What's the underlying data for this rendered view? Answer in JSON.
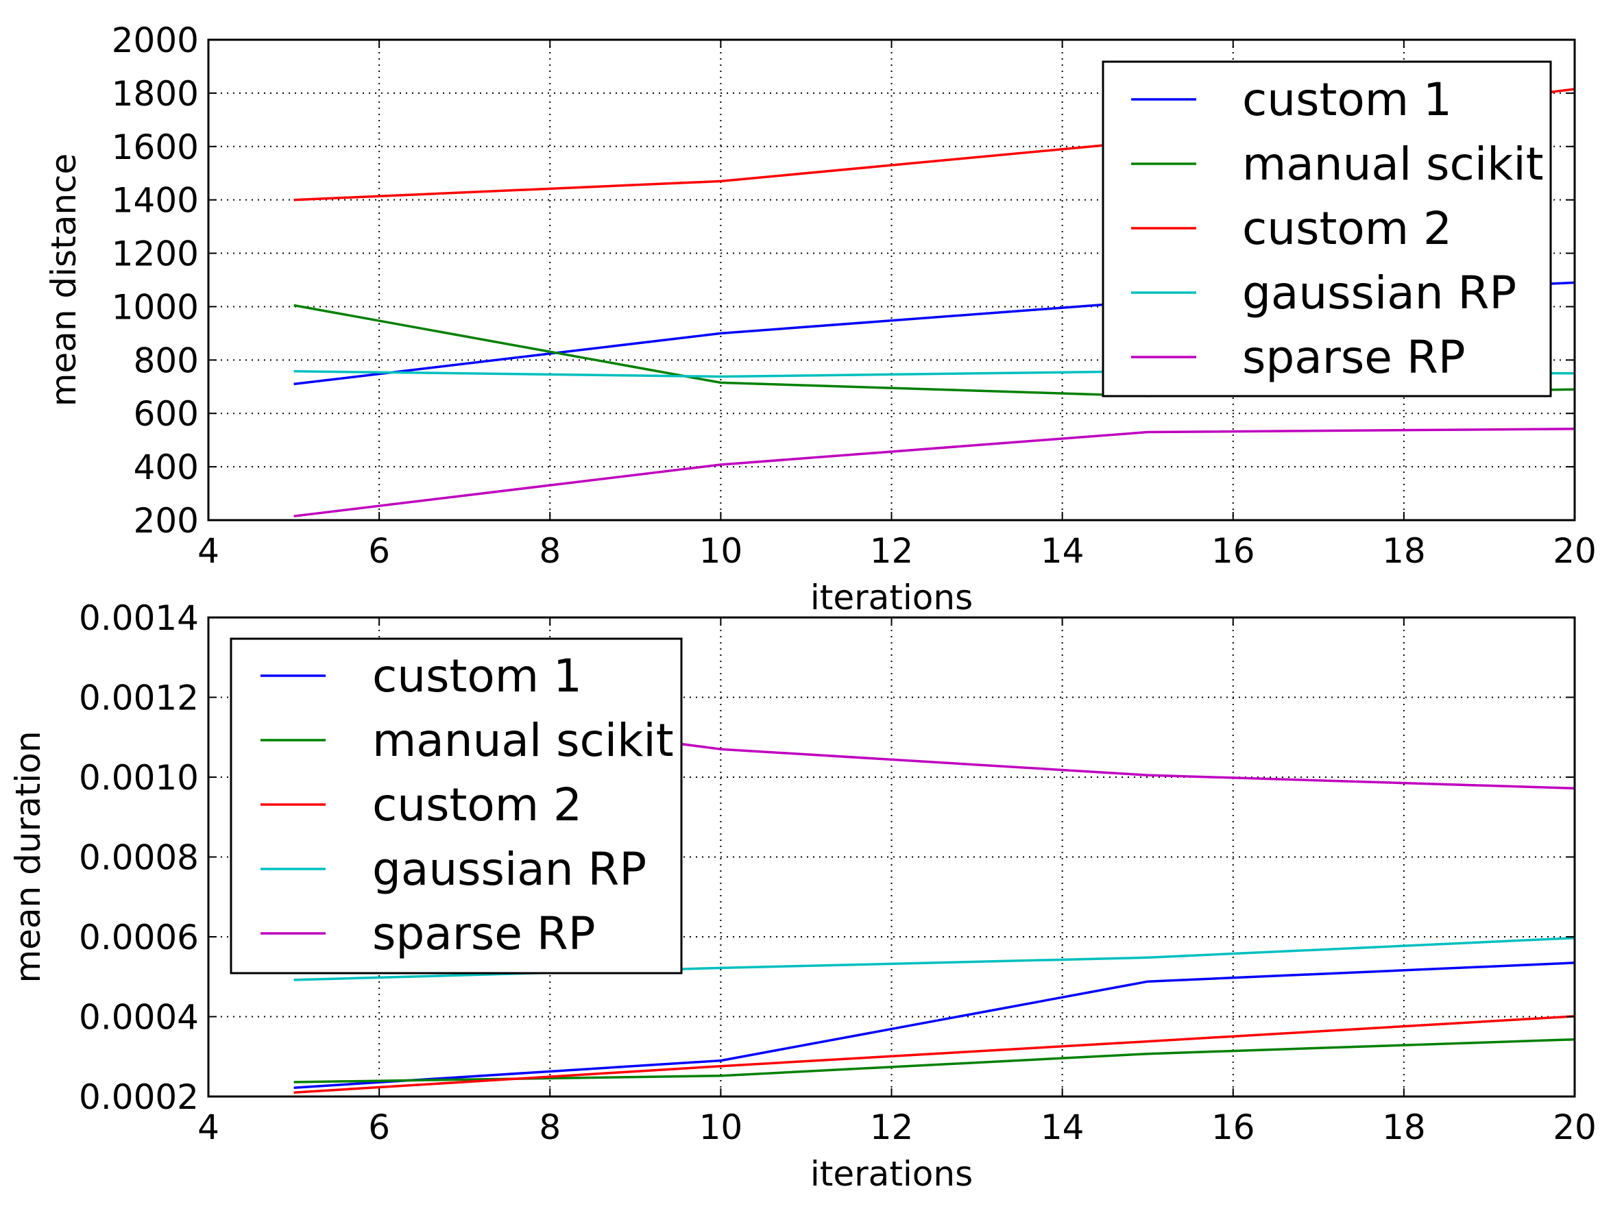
{
  "chart_data": [
    {
      "type": "line",
      "title": "",
      "xlabel": "iterations",
      "ylabel": "mean distance",
      "xlim": [
        4,
        20
      ],
      "ylim": [
        200,
        2000
      ],
      "xticks": [
        4,
        6,
        8,
        10,
        12,
        14,
        16,
        18,
        20
      ],
      "xtick_labels": [
        "4",
        "6",
        "8",
        "10",
        "12",
        "14",
        "16",
        "18",
        "20"
      ],
      "yticks": [
        200,
        400,
        600,
        800,
        1000,
        1200,
        1400,
        1600,
        1800,
        2000
      ],
      "ytick_labels": [
        "200",
        "400",
        "600",
        "800",
        "1000",
        "1200",
        "1400",
        "1600",
        "1800",
        "2000"
      ],
      "grid": true,
      "legend_position": "upper-right",
      "x": [
        5,
        10,
        15,
        20
      ],
      "series": [
        {
          "name": "custom 1",
          "color": "#0000ff",
          "values": [
            710,
            900,
            1020,
            1090
          ]
        },
        {
          "name": "manual scikit",
          "color": "#008000",
          "values": [
            1005,
            715,
            665,
            690
          ]
        },
        {
          "name": "custom 2",
          "color": "#ff0000",
          "values": [
            1400,
            1470,
            1620,
            1815
          ]
        },
        {
          "name": "gaussian RP",
          "color": "#00bfbf",
          "values": [
            758,
            738,
            758,
            750
          ]
        },
        {
          "name": "sparse RP",
          "color": "#bf00bf",
          "values": [
            215,
            408,
            530,
            542
          ]
        }
      ]
    },
    {
      "type": "line",
      "title": "",
      "xlabel": "iterations",
      "ylabel": "mean duration",
      "xlim": [
        4,
        20
      ],
      "ylim": [
        0.0002,
        0.0014
      ],
      "xticks": [
        4,
        6,
        8,
        10,
        12,
        14,
        16,
        18,
        20
      ],
      "xtick_labels": [
        "4",
        "6",
        "8",
        "10",
        "12",
        "14",
        "16",
        "18",
        "20"
      ],
      "yticks": [
        0.0002,
        0.0004,
        0.0006,
        0.0008,
        0.001,
        0.0012,
        0.0014
      ],
      "ytick_labels": [
        "0.0002",
        "0.0004",
        "0.0006",
        "0.0008",
        "0.0010",
        "0.0012",
        "0.0014"
      ],
      "grid": true,
      "legend_position": "upper-left",
      "x": [
        5,
        10,
        15,
        20
      ],
      "series": [
        {
          "name": "custom 1",
          "color": "#0000ff",
          "values": [
            0.000222,
            0.00029,
            0.000488,
            0.000535
          ]
        },
        {
          "name": "manual scikit",
          "color": "#008000",
          "values": [
            0.000236,
            0.000252,
            0.000307,
            0.000343
          ]
        },
        {
          "name": "custom 2",
          "color": "#ff0000",
          "values": [
            0.00021,
            0.000276,
            0.000338,
            0.000401
          ]
        },
        {
          "name": "gaussian RP",
          "color": "#00bfbf",
          "values": [
            0.000492,
            0.000522,
            0.000548,
            0.000597
          ]
        },
        {
          "name": "sparse RP",
          "color": "#bf00bf",
          "values": [
            0.00121,
            0.00107,
            0.001005,
            0.000972
          ]
        }
      ]
    }
  ]
}
